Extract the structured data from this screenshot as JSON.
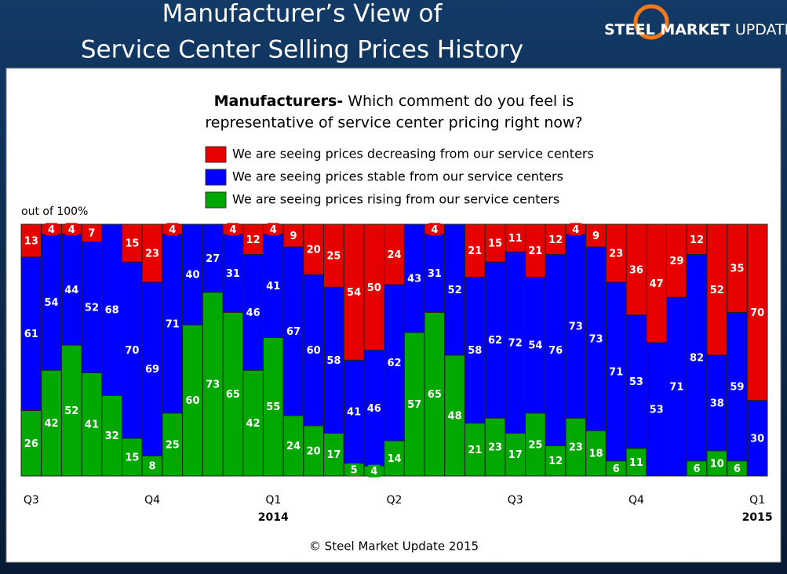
{
  "header": {
    "title_line1": "Manufacturer’s View of",
    "title_line2": "Service Center Selling Prices History",
    "logo_bold": "STEEL MARKET",
    "logo_light": "UPDATE"
  },
  "chart_data": {
    "type": "stacked_bar",
    "question_bold": "Manufacturers-",
    "question_line1": " Which comment do you feel is",
    "question_line2": "representative of service center pricing right now?",
    "y_note": "out of 100%",
    "categories": [
      "Q3",
      null,
      null,
      null,
      null,
      null,
      "Q4",
      null,
      null,
      null,
      null,
      null,
      "Q1",
      null,
      null,
      null,
      null,
      null,
      "Q2",
      null,
      null,
      null,
      null,
      null,
      "Q3",
      null,
      null,
      null,
      null,
      null,
      "Q4",
      null,
      null,
      null,
      null,
      null,
      "Q1"
    ],
    "years": [
      null,
      null,
      null,
      null,
      null,
      null,
      null,
      null,
      null,
      null,
      null,
      null,
      "2014",
      null,
      null,
      null,
      null,
      null,
      null,
      null,
      null,
      null,
      null,
      null,
      null,
      null,
      null,
      null,
      null,
      null,
      null,
      null,
      null,
      null,
      null,
      null,
      "2015"
    ],
    "series": [
      {
        "name": "We are seeing prices rising from our service centers",
        "color": "#00a800",
        "values": [
          26,
          42,
          52,
          41,
          32,
          15,
          8,
          25,
          60,
          73,
          65,
          42,
          55,
          24,
          20,
          17,
          5,
          4,
          14,
          57,
          65,
          48,
          21,
          23,
          17,
          25,
          12,
          23,
          18,
          6,
          11,
          0,
          0,
          6,
          10,
          6,
          0
        ]
      },
      {
        "name": "We are seeing prices stable from our service centers",
        "color": "#0000ff",
        "values": [
          61,
          54,
          44,
          52,
          68,
          70,
          69,
          71,
          40,
          27,
          31,
          46,
          41,
          67,
          60,
          58,
          41,
          46,
          62,
          43,
          31,
          52,
          58,
          62,
          72,
          54,
          76,
          73,
          73,
          71,
          53,
          53,
          71,
          82,
          38,
          59,
          30
        ]
      },
      {
        "name": "We are seeing prices decreasing from our service centers",
        "color": "#e60000",
        "values": [
          13,
          4,
          4,
          7,
          0,
          15,
          23,
          4,
          0,
          0,
          4,
          12,
          4,
          9,
          20,
          25,
          54,
          50,
          24,
          0,
          4,
          0,
          21,
          15,
          11,
          21,
          12,
          4,
          9,
          23,
          36,
          47,
          29,
          12,
          52,
          35,
          70
        ]
      }
    ],
    "ylim": [
      0,
      100
    ],
    "source": "© Steel Market Update 2015"
  }
}
